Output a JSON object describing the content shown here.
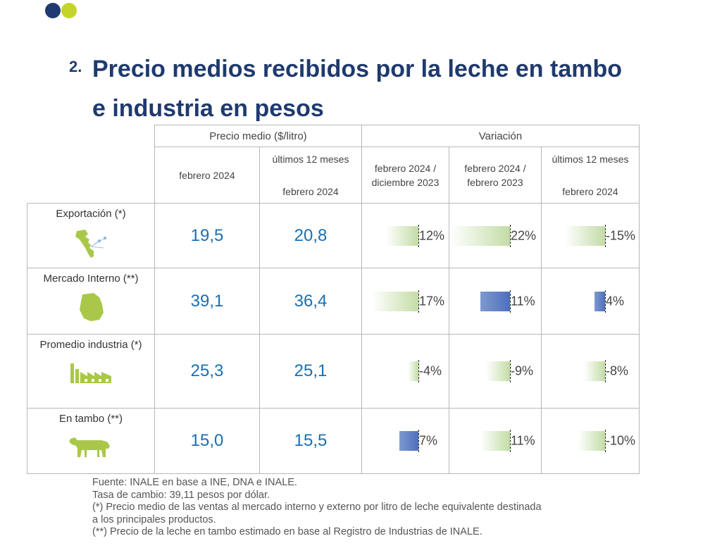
{
  "header": {
    "number": "2.",
    "title": "Precio medios recibidos por la leche en tambo e industria en pesos"
  },
  "table": {
    "group_price": "Precio medio ($/litro)",
    "group_var": "Variación",
    "col_price_month": "febrero 2024",
    "col_price_12m_top": "últimos 12 meses",
    "col_price_12m_bottom": "febrero 2024",
    "col_var_a": "febrero 2024 / diciembre 2023",
    "col_var_b": "febrero 2024 / febrero 2023",
    "col_var_c_top": "últimos 12 meses",
    "col_var_c_bottom": "febrero 2024",
    "rows": [
      {
        "label": "Exportación (*)",
        "icon": "americas-map-icon",
        "price_month": "19,5",
        "price_12m": "20,8",
        "var_a": "12%",
        "var_b": "22%",
        "var_c": "-15%",
        "var_values": [
          0.12,
          0.22,
          -0.15
        ],
        "var_styles": [
          "green",
          "green",
          "green"
        ]
      },
      {
        "label": "Mercado Interno (**)",
        "icon": "uruguay-map-icon",
        "price_month": "39,1",
        "price_12m": "36,4",
        "var_a": "17%",
        "var_b": "11%",
        "var_c": "4%",
        "var_values": [
          0.17,
          0.11,
          0.04
        ],
        "var_styles": [
          "green",
          "blue",
          "blue"
        ]
      },
      {
        "label": "Promedio industria (*)",
        "icon": "factory-icon",
        "price_month": "25,3",
        "price_12m": "25,1",
        "var_a": "-4%",
        "var_b": "-9%",
        "var_c": "-8%",
        "var_values": [
          -0.04,
          -0.09,
          -0.08
        ],
        "var_styles": [
          "green",
          "green",
          "green"
        ]
      },
      {
        "label": "En tambo (**)",
        "icon": "cow-icon",
        "price_month": "15,0",
        "price_12m": "15,5",
        "var_a": "7%",
        "var_b": "11%",
        "var_c": "-10%",
        "var_values": [
          0.07,
          0.11,
          -0.1
        ],
        "var_styles": [
          "blue",
          "green",
          "green"
        ]
      }
    ]
  },
  "footer": {
    "line1": "Fuente: INALE en base a INE, DNA e INALE.",
    "line2": "Tasa de cambio: 39,11 pesos por dólar.",
    "line3": "(*) Precio medio de las ventas al mercado interno y externo por litro de leche equivalente destinada",
    "line4": "a los principales productos.",
    "line5": "(**) Precio de la leche en tambo estimado en base al Registro de Industrias de INALE."
  },
  "colors": {
    "navy": "#1f3a6e",
    "lime": "#c5d42a",
    "price_blue": "#1a6fb3",
    "icon_green": "#a9c84a",
    "bar_green": "#c3dca6",
    "bar_blue": "#4e6fbc"
  }
}
